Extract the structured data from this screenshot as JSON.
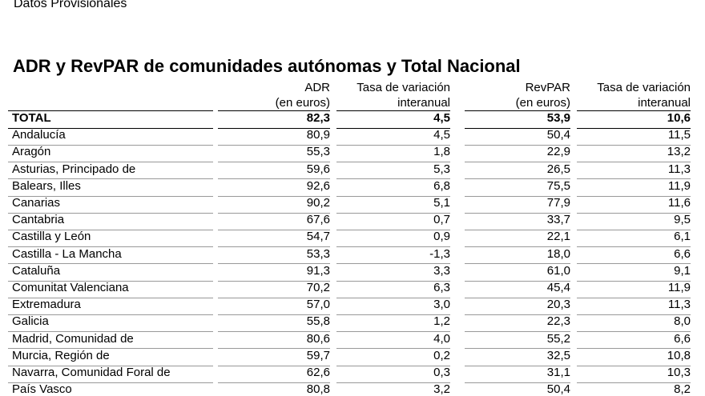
{
  "header": {
    "note": "Datos Provisionales",
    "title": "ADR y RevPAR de comunidades autónomas y Total Nacional"
  },
  "table": {
    "columns": [
      [
        "ADR",
        "(en euros)"
      ],
      [
        "Tasa de variación",
        "interanual"
      ],
      [
        "RevPAR",
        "(en euros)"
      ],
      [
        "Tasa de variación",
        "interanual"
      ]
    ],
    "rows": [
      [
        "TOTAL",
        "82,3",
        "4,5",
        "53,9",
        "10,6"
      ],
      [
        "Andalucía",
        "80,9",
        "4,5",
        "50,4",
        "11,5"
      ],
      [
        "Aragón",
        "55,3",
        "1,8",
        "22,9",
        "13,2"
      ],
      [
        "Asturias, Principado de",
        "59,6",
        "5,3",
        "26,5",
        "11,3"
      ],
      [
        "Balears, Illes",
        "92,6",
        "6,8",
        "75,5",
        "11,9"
      ],
      [
        "Canarias",
        "90,2",
        "5,1",
        "77,9",
        "11,6"
      ],
      [
        "Cantabria",
        "67,6",
        "0,7",
        "33,7",
        "9,5"
      ],
      [
        "Castilla y León",
        "54,7",
        "0,9",
        "22,1",
        "6,1"
      ],
      [
        "Castilla - La Mancha",
        "53,3",
        "-1,3",
        "18,0",
        "6,6"
      ],
      [
        "Cataluña",
        "91,3",
        "3,3",
        "61,0",
        "9,1"
      ],
      [
        "Comunitat Valenciana",
        "70,2",
        "6,3",
        "45,4",
        "11,9"
      ],
      [
        "Extremadura",
        "57,0",
        "3,0",
        "20,3",
        "11,3"
      ],
      [
        "Galicia",
        "55,8",
        "1,2",
        "22,3",
        "8,0"
      ],
      [
        "Madrid, Comunidad de",
        "80,6",
        "4,0",
        "55,2",
        "6,6"
      ],
      [
        "Murcia, Región de",
        "59,7",
        "0,2",
        "32,5",
        "10,8"
      ],
      [
        "Navarra, Comunidad Foral de",
        "62,6",
        "0,3",
        "31,1",
        "10,3"
      ],
      [
        "País Vasco",
        "80,8",
        "3,2",
        "50,4",
        "8,2"
      ]
    ]
  }
}
